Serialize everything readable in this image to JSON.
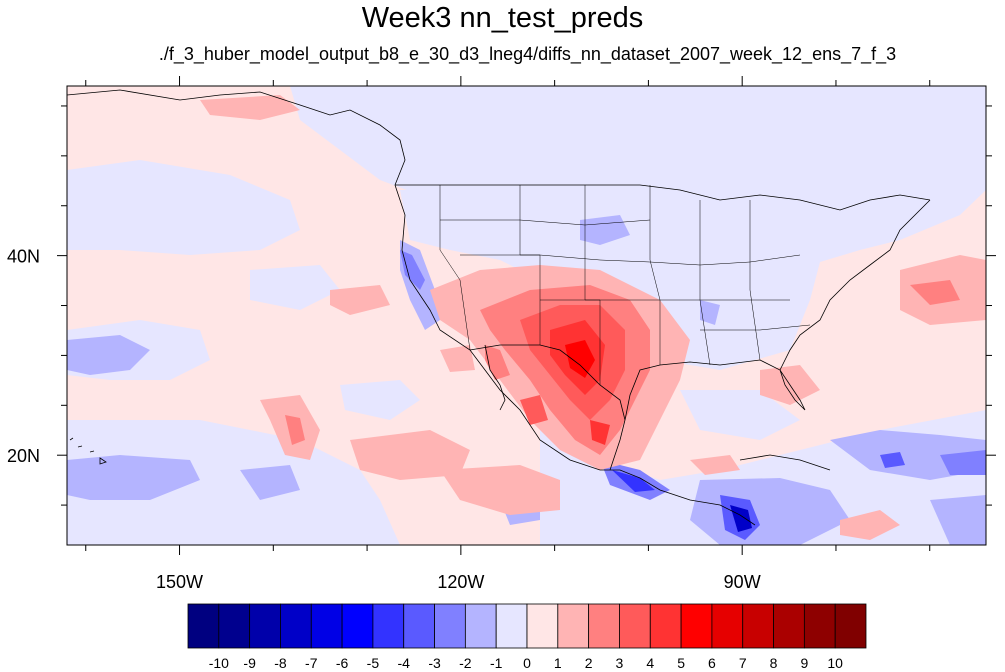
{
  "title": "Week3 nn_test_preds",
  "subtitle": "./f_3_huber_model_output_b8_e_30_d3_lneg4/diffs_nn_dataset_2007_week_12_ens_7_f_3",
  "map": {
    "lon_range": [
      -162,
      -64
    ],
    "lat_range": [
      11,
      57
    ],
    "x_ticks": [
      {
        "value": -150,
        "label": "150W"
      },
      {
        "value": -120,
        "label": "120W"
      },
      {
        "value": -90,
        "label": "90W"
      }
    ],
    "y_ticks": [
      {
        "value": 40,
        "label": "40N"
      },
      {
        "value": 20,
        "label": "20N"
      }
    ]
  },
  "colorbar": {
    "labels": [
      "-10",
      "-9",
      "-8",
      "-7",
      "-6",
      "-5",
      "-4",
      "-3",
      "-2",
      "-1",
      "0",
      "1",
      "2",
      "3",
      "4",
      "5",
      "6",
      "7",
      "8",
      "9",
      "10"
    ],
    "colors": [
      "#000080",
      "#00008e",
      "#0000aa",
      "#0000c8",
      "#0000e6",
      "#0000ff",
      "#3333ff",
      "#5a5aff",
      "#8080ff",
      "#b4b4ff",
      "#e6e6ff",
      "#ffe6e6",
      "#ffb4b4",
      "#ff8080",
      "#ff5a5a",
      "#ff3333",
      "#ff0000",
      "#e60000",
      "#c80000",
      "#aa0000",
      "#8e0000",
      "#800000"
    ]
  },
  "colors": {
    "background_field": "#ffe6e6",
    "negative_light": "#e6e6ff",
    "coast": "#000000"
  }
}
